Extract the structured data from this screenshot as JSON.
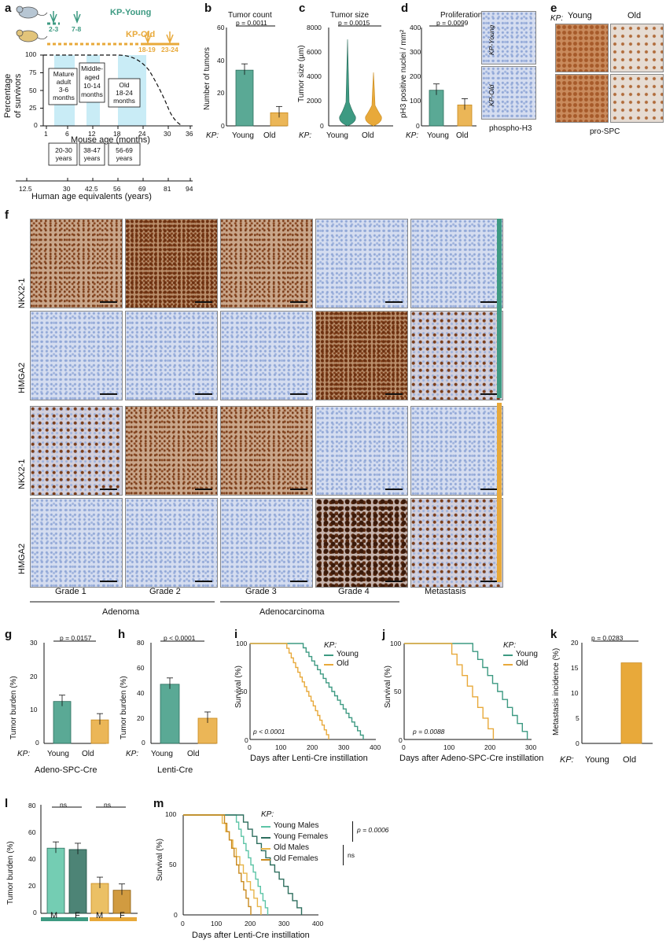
{
  "panel_labels": {
    "a": "a",
    "b": "b",
    "c": "c",
    "d": "d",
    "e": "e",
    "f": "f",
    "g": "g",
    "h": "h",
    "i": "i",
    "j": "j",
    "k": "k",
    "l": "l",
    "m": "m"
  },
  "colors": {
    "young": "#3d9a82",
    "old": "#e8a93a",
    "young_dark": "#2e6e5e",
    "old_dark": "#c98a1e",
    "highlight": "#c9ecf6"
  },
  "panel_a": {
    "legend_young": "KP-Young",
    "legend_old": "KP-Old",
    "young_ticks": [
      "2-3",
      "7-8"
    ],
    "old_ticks": [
      "18-19",
      "23-24"
    ],
    "ylabel_line1": "Percentage",
    "ylabel_line2": "of survivors",
    "xlabel_mouse": "Mouse age (months)",
    "xlabel_human": "Human age equivalents (years)",
    "y_ticks": [
      "100",
      "75",
      "50",
      "25",
      "0"
    ],
    "x_ticks_mouse": [
      "1",
      "6",
      "12",
      "18",
      "24",
      "30",
      "36"
    ],
    "x_ticks_human": [
      "12.5",
      "30",
      "42.5",
      "56",
      "69",
      "81",
      "94"
    ],
    "boxes_mouse": [
      {
        "l1": "Mature",
        "l2": "adult",
        "l3": "3-6",
        "l4": "months"
      },
      {
        "l1": "Middle-",
        "l2": "aged",
        "l3": "10-14",
        "l4": "months"
      },
      {
        "l1": "Old",
        "l2": "18-24",
        "l3": "months",
        "l4": ""
      }
    ],
    "boxes_human": [
      {
        "l1": "20-30",
        "l2": "years"
      },
      {
        "l1": "38-47",
        "l2": "years"
      },
      {
        "l1": "56-69",
        "l2": "years"
      }
    ]
  },
  "chart_data": [
    {
      "id": "b",
      "type": "bar",
      "title": "Tumor count",
      "ylabel": "Number of tumors",
      "xlabel_prefix": "KP:",
      "categories": [
        "Young",
        "Old"
      ],
      "values": [
        34,
        8
      ],
      "ylim": [
        0,
        60
      ],
      "y_ticks": [
        "60",
        "40",
        "20",
        "0"
      ],
      "pvalue": "p = 0.0011"
    },
    {
      "id": "c",
      "type": "violin",
      "title": "Tumor size",
      "ylabel": "Tumor size (µm)",
      "xlabel_prefix": "KP:",
      "categories": [
        "Young",
        "Old"
      ],
      "ylim": [
        0,
        8000
      ],
      "y_ticks": [
        "8000",
        "6000",
        "4000",
        "2000",
        "0"
      ],
      "pvalue": "p = 0.0015"
    },
    {
      "id": "d",
      "type": "bar",
      "title": "Proliferation",
      "ylabel": "pH3 positive nuclei / mm²",
      "xlabel_prefix": "KP:",
      "categories": [
        "Young",
        "Old"
      ],
      "values": [
        145,
        85
      ],
      "ylim": [
        0,
        400
      ],
      "y_ticks": [
        "400",
        "300",
        "200",
        "100",
        "0"
      ],
      "pvalue": "p = 0.0099",
      "image_labels": [
        "KP-Young",
        "KP-Old"
      ],
      "image_caption": "phospho-H3"
    },
    {
      "id": "g",
      "type": "bar",
      "ylabel": "Tumor burden (%)",
      "xlabel_prefix": "KP:",
      "categories": [
        "Young",
        "Old"
      ],
      "values": [
        12.5,
        7
      ],
      "ylim": [
        0,
        30
      ],
      "y_ticks": [
        "30",
        "20",
        "10",
        "0"
      ],
      "pvalue": "p = 0.0157",
      "caption": "Adeno-SPC-Cre"
    },
    {
      "id": "h",
      "type": "bar",
      "ylabel": "Tumor burden (%)",
      "xlabel_prefix": "KP:",
      "categories": [
        "Young",
        "Old"
      ],
      "values": [
        47,
        20
      ],
      "ylim": [
        0,
        80
      ],
      "y_ticks": [
        "80",
        "60",
        "40",
        "20",
        "0"
      ],
      "pvalue": "p < 0.0001",
      "caption": "Lenti-Cre"
    },
    {
      "id": "i",
      "type": "line",
      "ylabel": "Survival (%)",
      "xlabel": "Days after Lenti-Cre instillation",
      "legend_title": "KP:",
      "series": [
        {
          "name": "Young"
        },
        {
          "name": "Old"
        }
      ],
      "xlim": [
        0,
        400
      ],
      "ylim": [
        0,
        100
      ],
      "x_ticks": [
        "0",
        "100",
        "200",
        "300",
        "400"
      ],
      "y_ticks": [
        "100",
        "50",
        "0"
      ],
      "pvalue": "p < 0.0001"
    },
    {
      "id": "j",
      "type": "line",
      "ylabel": "Survival (%)",
      "xlabel": "Days after Adeno-SPC-Cre instillation",
      "legend_title": "KP:",
      "series": [
        {
          "name": "Young"
        },
        {
          "name": "Old"
        }
      ],
      "xlim": [
        0,
        300
      ],
      "ylim": [
        0,
        100
      ],
      "x_ticks": [
        "0",
        "100",
        "200",
        "300"
      ],
      "y_ticks": [
        "100",
        "50",
        "0"
      ],
      "pvalue": "p = 0.0088"
    },
    {
      "id": "k",
      "type": "bar",
      "ylabel": "Metastasis incidence (%)",
      "xlabel_prefix": "KP:",
      "categories": [
        "Young",
        "Old"
      ],
      "values": [
        0,
        16
      ],
      "ylim": [
        0,
        20
      ],
      "y_ticks": [
        "20",
        "15",
        "10",
        "5",
        "0"
      ],
      "pvalue": "p = 0.0283"
    },
    {
      "id": "l",
      "type": "bar",
      "ylabel": "Tumor burden (%)",
      "categories": [
        "M",
        "F",
        "M",
        "F"
      ],
      "values": [
        48,
        47,
        22,
        17
      ],
      "ylim": [
        0,
        80
      ],
      "y_ticks": [
        "80",
        "60",
        "40",
        "20",
        "0"
      ],
      "ns_labels": [
        "ns",
        "ns"
      ]
    },
    {
      "id": "m",
      "type": "line",
      "ylabel": "Survival (%)",
      "xlabel": "Days after Lenti-Cre instillation",
      "legend_title": "KP:",
      "series": [
        {
          "name": "Young Males"
        },
        {
          "name": "Young Females"
        },
        {
          "name": "Old Males"
        },
        {
          "name": "Old Females"
        }
      ],
      "xlim": [
        0,
        400
      ],
      "ylim": [
        0,
        100
      ],
      "x_ticks": [
        "0",
        "100",
        "200",
        "300",
        "400"
      ],
      "y_ticks": [
        "100",
        "50",
        "0"
      ],
      "pvalue": "p = 0.0006",
      "ns": "ns"
    }
  ],
  "panel_e": {
    "prefix": "KP:",
    "young": "Young",
    "old": "Old",
    "caption": "pro-SPC"
  },
  "panel_f": {
    "row_labels": [
      "NKX2-1",
      "HMGA2",
      "NKX2-1",
      "HMGA2"
    ],
    "col_labels": [
      "Grade 1",
      "Grade 2",
      "Grade 3",
      "Grade 4",
      "Metastasis"
    ],
    "group_labels": [
      "Adenoma",
      "Adenocarcinoma"
    ]
  }
}
